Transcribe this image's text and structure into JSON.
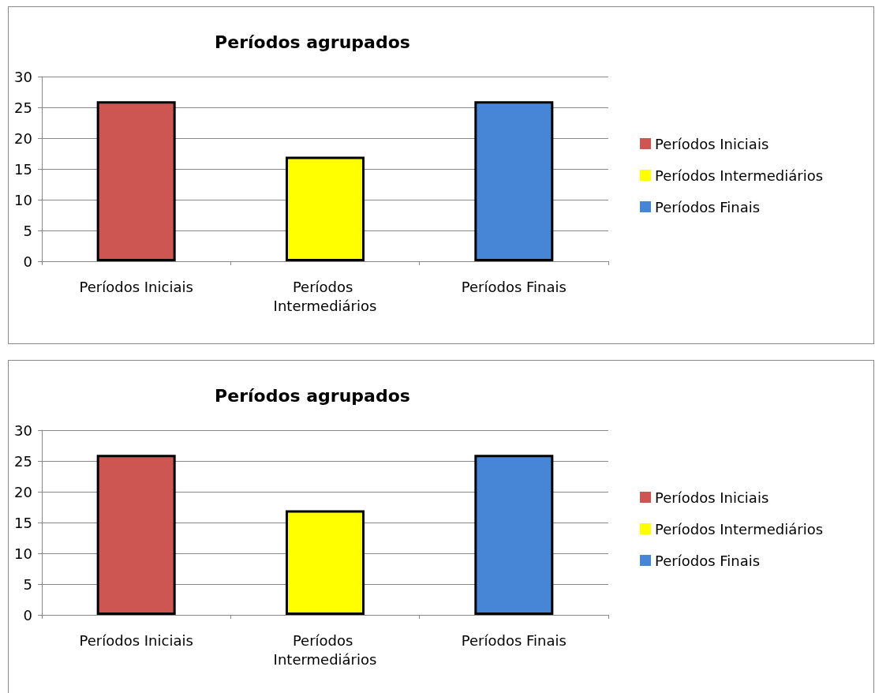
{
  "chart_data": [
    {
      "type": "bar",
      "title": "Períodos agrupados",
      "categories": [
        "Períodos Iniciais",
        "Períodos Intermediários",
        "Períodos Finais"
      ],
      "series": [
        {
          "name": "Períodos Iniciais",
          "color": "#cd5652",
          "values": [
            26,
            null,
            null
          ]
        },
        {
          "name": "Períodos Intermediários",
          "color": "#ffff00",
          "values": [
            null,
            17,
            null
          ]
        },
        {
          "name": "Períodos Finais",
          "color": "#4785d6",
          "values": [
            null,
            null,
            26
          ]
        }
      ],
      "ylim": [
        0,
        30
      ],
      "yticks": [
        0,
        5,
        10,
        15,
        20,
        25,
        30
      ],
      "grid": "y",
      "legend": "right"
    },
    {
      "type": "bar",
      "title": "Períodos agrupados",
      "categories": [
        "Períodos Iniciais",
        "Períodos Intermediários",
        "Períodos Finais"
      ],
      "series": [
        {
          "name": "Períodos Iniciais",
          "color": "#cd5652",
          "values": [
            26,
            null,
            null
          ]
        },
        {
          "name": "Períodos Intermediários",
          "color": "#ffff00",
          "values": [
            null,
            17,
            null
          ]
        },
        {
          "name": "Períodos Finais",
          "color": "#4785d6",
          "values": [
            null,
            null,
            26
          ]
        }
      ],
      "ylim": [
        0,
        30
      ],
      "yticks": [
        0,
        5,
        10,
        15,
        20,
        25,
        30
      ],
      "grid": "y",
      "legend": "right"
    }
  ]
}
